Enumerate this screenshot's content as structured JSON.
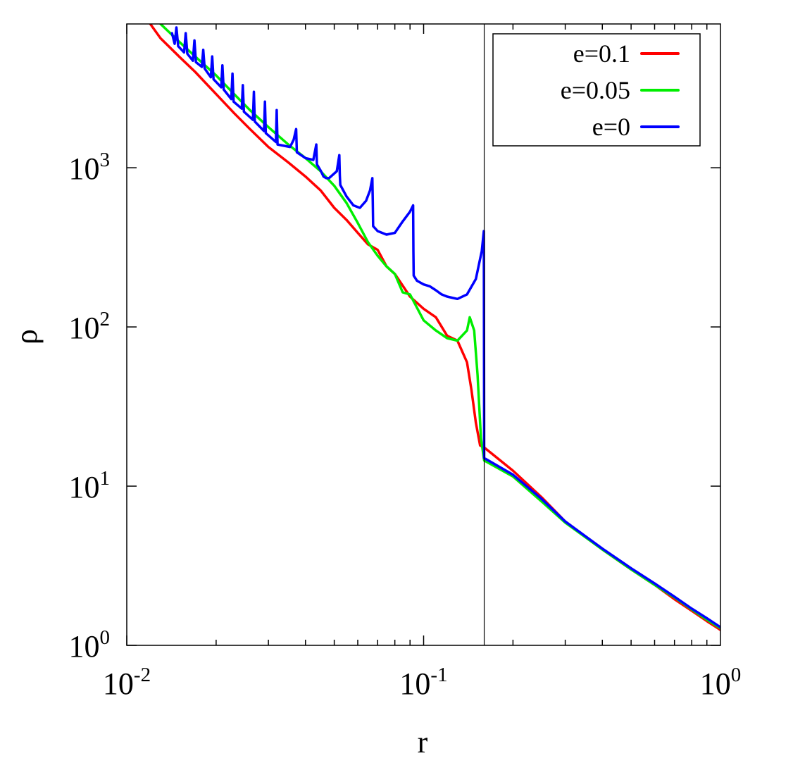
{
  "chart_data": {
    "type": "line",
    "xlabel": "r",
    "ylabel": "ρ",
    "xscale": "log",
    "yscale": "log",
    "xlim": [
      0.01,
      1
    ],
    "ylim": [
      1,
      8000
    ],
    "x_ticks": [
      {
        "base": "10",
        "exp": "-2",
        "value": 0.01
      },
      {
        "base": "10",
        "exp": "-1",
        "value": 0.1
      },
      {
        "base": "10",
        "exp": "0",
        "value": 1
      }
    ],
    "y_ticks": [
      {
        "base": "10",
        "exp": "0",
        "value": 1
      },
      {
        "base": "10",
        "exp": "1",
        "value": 10
      },
      {
        "base": "10",
        "exp": "2",
        "value": 100
      },
      {
        "base": "10",
        "exp": "3",
        "value": 1000
      }
    ],
    "vertical_line_x": 0.16,
    "legend_position": "top-right",
    "grid": false,
    "series": [
      {
        "name": "e=0.1",
        "color": "#ff0000",
        "points": [
          [
            0.012,
            8000
          ],
          [
            0.013,
            6500
          ],
          [
            0.015,
            5000
          ],
          [
            0.017,
            4000
          ],
          [
            0.02,
            2900
          ],
          [
            0.023,
            2200
          ],
          [
            0.026,
            1750
          ],
          [
            0.03,
            1350
          ],
          [
            0.035,
            1080
          ],
          [
            0.04,
            880
          ],
          [
            0.045,
            720
          ],
          [
            0.05,
            560
          ],
          [
            0.055,
            470
          ],
          [
            0.06,
            390
          ],
          [
            0.065,
            330
          ],
          [
            0.07,
            305
          ],
          [
            0.075,
            240
          ],
          [
            0.08,
            215
          ],
          [
            0.09,
            155
          ],
          [
            0.1,
            130
          ],
          [
            0.11,
            115
          ],
          [
            0.12,
            88
          ],
          [
            0.13,
            82
          ],
          [
            0.14,
            60
          ],
          [
            0.145,
            40
          ],
          [
            0.15,
            25
          ],
          [
            0.155,
            18
          ],
          [
            0.16,
            17.5
          ],
          [
            0.2,
            12.5
          ],
          [
            0.25,
            8.5
          ],
          [
            0.3,
            6.0
          ],
          [
            0.4,
            4.0
          ],
          [
            0.5,
            3.0
          ],
          [
            0.6,
            2.4
          ],
          [
            0.7,
            1.95
          ],
          [
            0.8,
            1.65
          ],
          [
            0.9,
            1.42
          ],
          [
            1.0,
            1.25
          ]
        ]
      },
      {
        "name": "e=0.05",
        "color": "#00ee00",
        "points": [
          [
            0.013,
            8000
          ],
          [
            0.015,
            6200
          ],
          [
            0.017,
            5000
          ],
          [
            0.02,
            3800
          ],
          [
            0.023,
            2900
          ],
          [
            0.026,
            2300
          ],
          [
            0.03,
            1800
          ],
          [
            0.035,
            1400
          ],
          [
            0.04,
            1150
          ],
          [
            0.045,
            950
          ],
          [
            0.05,
            770
          ],
          [
            0.055,
            600
          ],
          [
            0.06,
            450
          ],
          [
            0.065,
            340
          ],
          [
            0.07,
            280
          ],
          [
            0.075,
            240
          ],
          [
            0.08,
            215
          ],
          [
            0.085,
            165
          ],
          [
            0.09,
            160
          ],
          [
            0.1,
            110
          ],
          [
            0.11,
            95
          ],
          [
            0.12,
            85
          ],
          [
            0.13,
            82
          ],
          [
            0.14,
            95
          ],
          [
            0.143,
            115
          ],
          [
            0.148,
            95
          ],
          [
            0.152,
            50
          ],
          [
            0.156,
            20
          ],
          [
            0.16,
            14.5
          ],
          [
            0.2,
            11.5
          ],
          [
            0.25,
            8.0
          ],
          [
            0.3,
            5.9
          ],
          [
            0.4,
            4.0
          ],
          [
            0.5,
            3.0
          ],
          [
            0.6,
            2.4
          ],
          [
            0.7,
            2.0
          ],
          [
            0.8,
            1.68
          ],
          [
            0.9,
            1.45
          ],
          [
            1.0,
            1.28
          ]
        ]
      },
      {
        "name": "e=0",
        "color": "#0000ff",
        "points": [
          [
            0.0142,
            7000
          ],
          [
            0.0145,
            6000
          ],
          [
            0.0147,
            7600
          ],
          [
            0.0149,
            5800
          ],
          [
            0.0156,
            5300
          ],
          [
            0.0158,
            7000
          ],
          [
            0.016,
            5200
          ],
          [
            0.0167,
            4700
          ],
          [
            0.0169,
            6300
          ],
          [
            0.0171,
            4600
          ],
          [
            0.0179,
            4300
          ],
          [
            0.0181,
            5500
          ],
          [
            0.0183,
            4200
          ],
          [
            0.0192,
            3700
          ],
          [
            0.0194,
            5000
          ],
          [
            0.0196,
            3600
          ],
          [
            0.0208,
            3200
          ],
          [
            0.021,
            4400
          ],
          [
            0.0212,
            3100
          ],
          [
            0.0225,
            2700
          ],
          [
            0.0227,
            3900
          ],
          [
            0.0229,
            2600
          ],
          [
            0.0244,
            2350
          ],
          [
            0.0246,
            3300
          ],
          [
            0.0248,
            2250
          ],
          [
            0.0266,
            2000
          ],
          [
            0.0268,
            3000
          ],
          [
            0.027,
            1950
          ],
          [
            0.029,
            1700
          ],
          [
            0.0292,
            2600
          ],
          [
            0.0294,
            1650
          ],
          [
            0.0318,
            1450
          ],
          [
            0.032,
            2300
          ],
          [
            0.0322,
            1400
          ],
          [
            0.0355,
            1350
          ],
          [
            0.0365,
            1500
          ],
          [
            0.0372,
            1750
          ],
          [
            0.0374,
            1250
          ],
          [
            0.04,
            1150
          ],
          [
            0.0425,
            1120
          ],
          [
            0.0435,
            1400
          ],
          [
            0.0437,
            1050
          ],
          [
            0.045,
            960
          ],
          [
            0.046,
            880
          ],
          [
            0.047,
            860
          ],
          [
            0.048,
            860
          ],
          [
            0.051,
            950
          ],
          [
            0.052,
            1200
          ],
          [
            0.0522,
            900
          ],
          [
            0.0524,
            780
          ],
          [
            0.055,
            660
          ],
          [
            0.058,
            580
          ],
          [
            0.061,
            560
          ],
          [
            0.064,
            620
          ],
          [
            0.066,
            720
          ],
          [
            0.0672,
            860
          ],
          [
            0.0674,
            620
          ],
          [
            0.0676,
            430
          ],
          [
            0.07,
            400
          ],
          [
            0.075,
            380
          ],
          [
            0.08,
            390
          ],
          [
            0.085,
            460
          ],
          [
            0.09,
            530
          ],
          [
            0.0922,
            580
          ],
          [
            0.0924,
            300
          ],
          [
            0.0926,
            210
          ],
          [
            0.095,
            195
          ],
          [
            0.1,
            185
          ],
          [
            0.105,
            180
          ],
          [
            0.11,
            170
          ],
          [
            0.115,
            160
          ],
          [
            0.12,
            155
          ],
          [
            0.13,
            150
          ],
          [
            0.14,
            160
          ],
          [
            0.15,
            200
          ],
          [
            0.157,
            300
          ],
          [
            0.1595,
            400
          ],
          [
            0.16,
            15
          ],
          [
            0.2,
            11.8
          ],
          [
            0.25,
            8.3
          ],
          [
            0.3,
            6.0
          ],
          [
            0.4,
            4.05
          ],
          [
            0.5,
            3.05
          ],
          [
            0.6,
            2.45
          ],
          [
            0.7,
            2.02
          ],
          [
            0.8,
            1.7
          ],
          [
            0.9,
            1.48
          ],
          [
            1.0,
            1.3
          ]
        ]
      }
    ]
  }
}
